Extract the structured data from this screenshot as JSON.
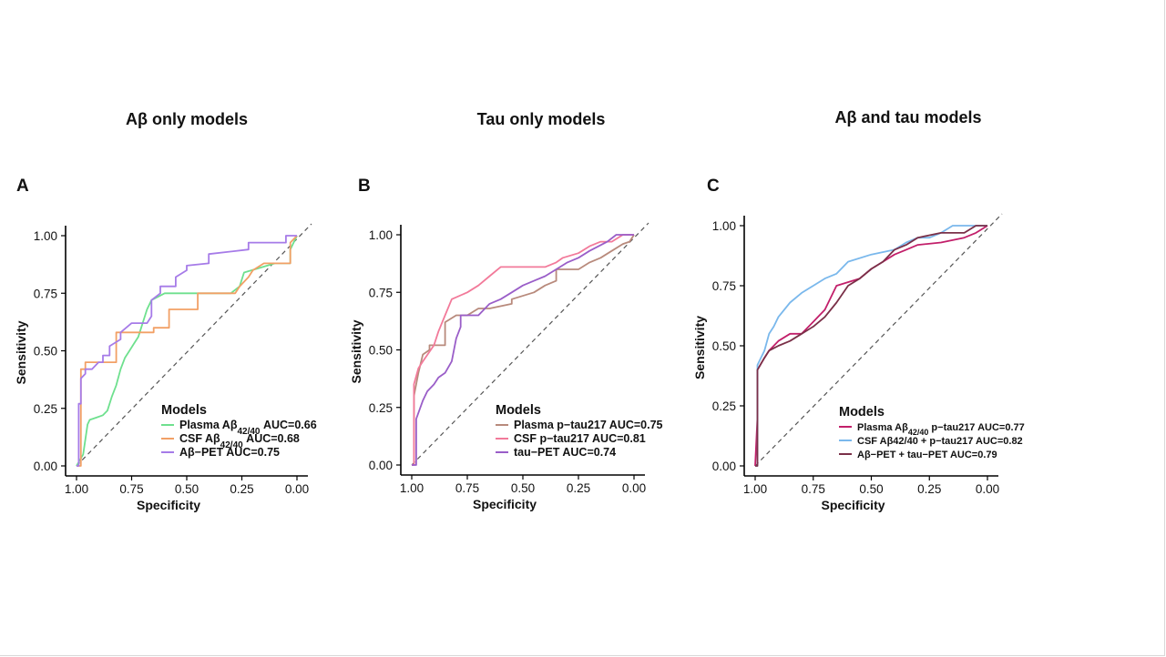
{
  "chart_data": [
    {
      "type": "line",
      "heading": "Aβ only models",
      "panel_label": "A",
      "xlabel": "Specificity",
      "ylabel": "Sensitivity",
      "x_reversed": true,
      "xlim": [
        1.0,
        0.0
      ],
      "ylim": [
        0.0,
        1.0
      ],
      "x_ticks": [
        "1.00",
        "0.75",
        "0.50",
        "0.25",
        "0.00"
      ],
      "y_ticks": [
        "0.00",
        "0.25",
        "0.50",
        "0.75",
        "1.00"
      ],
      "legend_title": "Models",
      "legend_position": "bottom-right",
      "reference_line": "diagonal dashed",
      "series": [
        {
          "name": "Plasma Aβ42/40 AUC=0.66",
          "name_parts": [
            "Plasma Aβ",
            "42/40",
            " AUC=0.66"
          ],
          "color": "#6ee08e",
          "x": [
            1.0,
            0.97,
            0.95,
            0.94,
            0.91,
            0.88,
            0.86,
            0.84,
            0.82,
            0.8,
            0.78,
            0.76,
            0.74,
            0.72,
            0.7,
            0.68,
            0.66,
            0.6,
            0.5,
            0.4,
            0.3,
            0.26,
            0.24,
            0.1,
            0.03,
            0.03,
            0.0
          ],
          "y": [
            0.0,
            0.05,
            0.18,
            0.2,
            0.21,
            0.22,
            0.24,
            0.3,
            0.35,
            0.42,
            0.47,
            0.5,
            0.53,
            0.56,
            0.62,
            0.68,
            0.72,
            0.75,
            0.75,
            0.75,
            0.75,
            0.78,
            0.84,
            0.88,
            0.88,
            0.94,
            1.0
          ]
        },
        {
          "name": "CSF Aβ42/40 AUC=0.68",
          "name_parts": [
            "CSF Aβ",
            "42/40",
            " AUC=0.68"
          ],
          "color": "#f2a066",
          "x": [
            1.0,
            0.98,
            0.98,
            0.96,
            0.96,
            0.94,
            0.94,
            0.82,
            0.82,
            0.65,
            0.65,
            0.58,
            0.58,
            0.45,
            0.45,
            0.28,
            0.26,
            0.22,
            0.2,
            0.15,
            0.1,
            0.03,
            0.03,
            0.0
          ],
          "y": [
            0.0,
            0.0,
            0.42,
            0.42,
            0.45,
            0.45,
            0.45,
            0.45,
            0.58,
            0.58,
            0.6,
            0.6,
            0.68,
            0.68,
            0.75,
            0.75,
            0.78,
            0.82,
            0.85,
            0.88,
            0.88,
            0.88,
            0.97,
            1.0
          ]
        },
        {
          "name": "Aβ−PET AUC=0.75",
          "name_parts": [
            "Aβ−PET AUC=0.75",
            "",
            ""
          ],
          "color": "#a67be8",
          "x": [
            1.0,
            0.99,
            0.99,
            0.98,
            0.98,
            0.96,
            0.96,
            0.93,
            0.9,
            0.88,
            0.88,
            0.85,
            0.85,
            0.8,
            0.8,
            0.75,
            0.68,
            0.66,
            0.66,
            0.62,
            0.62,
            0.55,
            0.55,
            0.5,
            0.5,
            0.4,
            0.4,
            0.22,
            0.22,
            0.05,
            0.05,
            0.0
          ],
          "y": [
            0.0,
            0.0,
            0.27,
            0.27,
            0.38,
            0.4,
            0.42,
            0.42,
            0.45,
            0.45,
            0.48,
            0.48,
            0.52,
            0.55,
            0.58,
            0.62,
            0.62,
            0.65,
            0.72,
            0.75,
            0.78,
            0.78,
            0.82,
            0.85,
            0.87,
            0.88,
            0.92,
            0.94,
            0.97,
            0.97,
            1.0,
            1.0
          ]
        }
      ]
    },
    {
      "type": "line",
      "heading": "Tau only models",
      "panel_label": "B",
      "xlabel": "Specificity",
      "ylabel": "Sensitivity",
      "x_reversed": true,
      "xlim": [
        1.0,
        0.0
      ],
      "ylim": [
        0.0,
        1.0
      ],
      "x_ticks": [
        "1.00",
        "0.75",
        "0.50",
        "0.25",
        "0.00"
      ],
      "y_ticks": [
        "0.00",
        "0.25",
        "0.50",
        "0.75",
        "1.00"
      ],
      "legend_title": "Models",
      "legend_position": "bottom-right",
      "reference_line": "diagonal dashed",
      "series": [
        {
          "name": "Plasma p−tau217 AUC=0.75",
          "name_parts": [
            "Plasma p−tau217 AUC=0.75",
            "",
            ""
          ],
          "color": "#b88a7c",
          "x": [
            1.0,
            0.99,
            0.99,
            0.97,
            0.95,
            0.92,
            0.92,
            0.85,
            0.85,
            0.8,
            0.75,
            0.7,
            0.65,
            0.55,
            0.55,
            0.45,
            0.4,
            0.35,
            0.35,
            0.25,
            0.2,
            0.15,
            0.1,
            0.05,
            0.02,
            0.0
          ],
          "y": [
            0.0,
            0.0,
            0.3,
            0.4,
            0.48,
            0.5,
            0.52,
            0.52,
            0.62,
            0.65,
            0.65,
            0.68,
            0.68,
            0.7,
            0.72,
            0.75,
            0.78,
            0.8,
            0.85,
            0.85,
            0.88,
            0.9,
            0.93,
            0.96,
            0.97,
            1.0
          ]
        },
        {
          "name": "CSF p−tau217 AUC=0.81",
          "name_parts": [
            "CSF p−tau217 AUC=0.81",
            "",
            ""
          ],
          "color": "#f27a9a",
          "x": [
            1.0,
            0.99,
            0.99,
            0.97,
            0.95,
            0.9,
            0.88,
            0.85,
            0.82,
            0.75,
            0.7,
            0.65,
            0.6,
            0.5,
            0.4,
            0.35,
            0.32,
            0.25,
            0.2,
            0.15,
            0.1,
            0.05,
            0.0
          ],
          "y": [
            0.0,
            0.0,
            0.35,
            0.42,
            0.45,
            0.52,
            0.58,
            0.65,
            0.72,
            0.75,
            0.78,
            0.82,
            0.86,
            0.86,
            0.86,
            0.88,
            0.9,
            0.92,
            0.95,
            0.97,
            0.97,
            1.0,
            1.0
          ]
        },
        {
          "name": "tau−PET AUC=0.74",
          "name_parts": [
            "tau−PET AUC=0.74",
            "",
            ""
          ],
          "color": "#9a5ec8",
          "x": [
            1.0,
            0.98,
            0.98,
            0.95,
            0.93,
            0.9,
            0.88,
            0.85,
            0.82,
            0.8,
            0.78,
            0.78,
            0.7,
            0.65,
            0.6,
            0.55,
            0.5,
            0.45,
            0.4,
            0.35,
            0.3,
            0.25,
            0.2,
            0.12,
            0.08,
            0.0
          ],
          "y": [
            0.0,
            0.0,
            0.2,
            0.28,
            0.32,
            0.35,
            0.38,
            0.4,
            0.45,
            0.55,
            0.6,
            0.65,
            0.65,
            0.7,
            0.72,
            0.75,
            0.78,
            0.8,
            0.82,
            0.85,
            0.88,
            0.9,
            0.93,
            0.97,
            1.0,
            1.0
          ]
        }
      ]
    },
    {
      "type": "line",
      "heading": "Aβ and tau models",
      "panel_label": "C",
      "xlabel": "Specificity",
      "ylabel": "Sensitivity",
      "x_reversed": true,
      "xlim": [
        1.0,
        0.0
      ],
      "ylim": [
        0.0,
        1.0
      ],
      "x_ticks": [
        "1.00",
        "0.75",
        "0.50",
        "0.25",
        "0.00"
      ],
      "y_ticks": [
        "0.00",
        "0.25",
        "0.50",
        "0.75",
        "1.00"
      ],
      "legend_title": "Models",
      "legend_position": "bottom-right",
      "reference_line": "diagonal dashed",
      "series": [
        {
          "name": "Plasma Aβ42/40  p−tau217 AUC=0.77",
          "name_parts": [
            "Plasma Aβ",
            "42/40",
            "  p−tau217 AUC=0.77"
          ],
          "color": "#c21f6a",
          "x": [
            1.0,
            0.99,
            0.99,
            0.96,
            0.94,
            0.9,
            0.85,
            0.8,
            0.75,
            0.7,
            0.65,
            0.55,
            0.5,
            0.45,
            0.4,
            0.35,
            0.3,
            0.2,
            0.1,
            0.05,
            0.0
          ],
          "y": [
            0.0,
            0.2,
            0.4,
            0.45,
            0.48,
            0.52,
            0.55,
            0.55,
            0.6,
            0.65,
            0.75,
            0.78,
            0.82,
            0.85,
            0.88,
            0.9,
            0.92,
            0.93,
            0.95,
            0.97,
            1.0
          ]
        },
        {
          "name": "CSF Aβ42/40 + p−tau217 AUC=0.82",
          "name_parts": [
            "CSF Aβ42/40 + p−tau217 AUC=0.82",
            "",
            ""
          ],
          "color": "#7ab8ec",
          "x": [
            1.0,
            0.99,
            0.99,
            0.96,
            0.94,
            0.92,
            0.9,
            0.85,
            0.8,
            0.75,
            0.7,
            0.65,
            0.6,
            0.5,
            0.4,
            0.35,
            0.3,
            0.25,
            0.2,
            0.15,
            0.05,
            0.0
          ],
          "y": [
            0.0,
            0.0,
            0.42,
            0.48,
            0.55,
            0.58,
            0.62,
            0.68,
            0.72,
            0.75,
            0.78,
            0.8,
            0.85,
            0.88,
            0.9,
            0.93,
            0.95,
            0.95,
            0.97,
            1.0,
            1.0,
            1.0
          ]
        },
        {
          "name": "Aβ−PET + tau−PET AUC=0.79",
          "name_parts": [
            "Aβ−PET + tau−PET AUC=0.79",
            "",
            ""
          ],
          "color": "#7a3048",
          "x": [
            1.0,
            0.99,
            0.99,
            0.96,
            0.94,
            0.9,
            0.85,
            0.8,
            0.75,
            0.7,
            0.65,
            0.6,
            0.55,
            0.5,
            0.45,
            0.4,
            0.35,
            0.3,
            0.2,
            0.1,
            0.05,
            0.0
          ],
          "y": [
            0.0,
            0.0,
            0.4,
            0.45,
            0.48,
            0.5,
            0.52,
            0.55,
            0.58,
            0.62,
            0.68,
            0.75,
            0.78,
            0.82,
            0.85,
            0.9,
            0.92,
            0.95,
            0.97,
            0.97,
            1.0,
            1.0
          ]
        }
      ]
    }
  ]
}
